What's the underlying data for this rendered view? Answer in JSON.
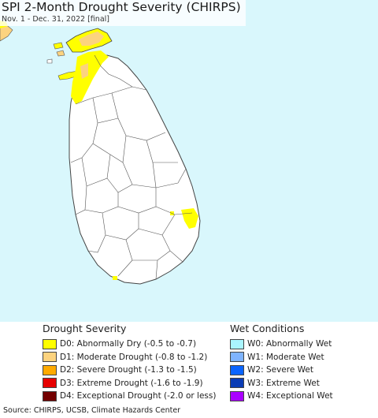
{
  "header": {
    "title": "SPI 2-Month Drought Severity (CHIRPS)",
    "subtitle": "Nov. 1 - Dec. 31, 2022 [final]"
  },
  "map": {
    "ocean_color": "#d9f7fc",
    "land_color": "#ffffff",
    "border_color": "#555555",
    "features": [
      {
        "name": "D0 abnormally dry",
        "region": "northwest coast and Jaffna peninsula",
        "category": "D0"
      },
      {
        "name": "D1 moderate drought",
        "region": "Jaffna peninsula and northern islands",
        "category": "D1"
      },
      {
        "name": "D0 abnormally dry",
        "region": "east coast",
        "category": "D0"
      },
      {
        "name": "D0 abnormally dry",
        "region": "south coast",
        "category": "D0"
      }
    ]
  },
  "legend": {
    "drought": {
      "heading": "Drought Severity",
      "items": [
        {
          "label": "D0: Abnormally Dry (-0.5 to -0.7)",
          "color": "#ffff00"
        },
        {
          "label": "D1: Moderate Drought (-0.8 to -1.2)",
          "color": "#fcd37f"
        },
        {
          "label": "D2: Severe Drought (-1.3 to -1.5)",
          "color": "#ffaa00"
        },
        {
          "label": "D3: Extreme Drought (-1.6 to -1.9)",
          "color": "#e60000"
        },
        {
          "label": "D4: Exceptional Drought (-2.0 or less)",
          "color": "#730000"
        }
      ]
    },
    "wet": {
      "heading": "Wet Conditions",
      "items": [
        {
          "label": "W0: Abnormally Wet",
          "color": "#aaf5ff"
        },
        {
          "label": "W1: Moderate Wet",
          "color": "#7fb4ff"
        },
        {
          "label": "W2: Severe Wet",
          "color": "#0a64ff"
        },
        {
          "label": "W3: Extreme Wet",
          "color": "#0a3cb4"
        },
        {
          "label": "W4: Exceptional Wet",
          "color": "#aa00ff"
        }
      ]
    }
  },
  "footer": {
    "source": "Source: CHIRPS, UCSB, Climate Hazards Center"
  }
}
